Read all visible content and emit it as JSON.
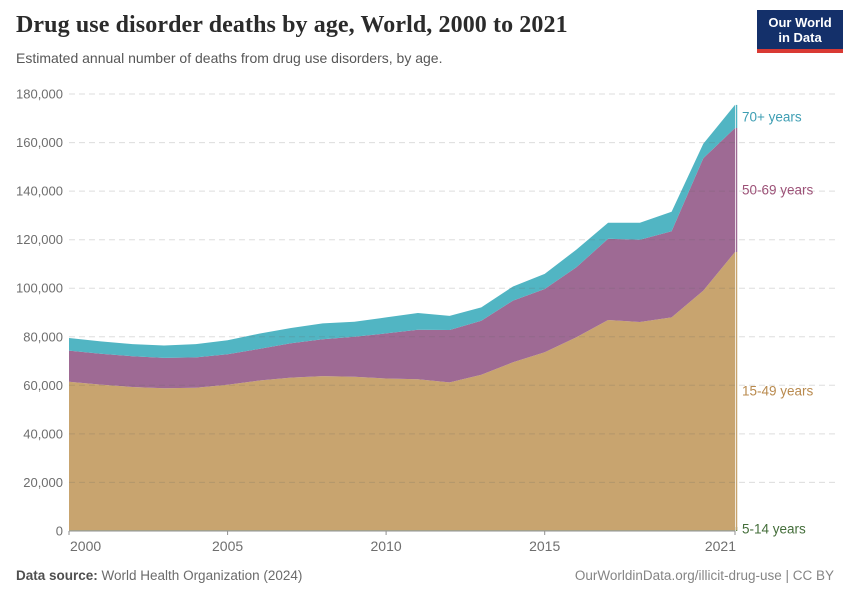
{
  "header": {
    "title": "Drug use disorder deaths by age, World, 2000 to 2021",
    "subtitle": "Estimated annual number of deaths from drug use disorders, by age.",
    "logo": {
      "line1": "Our World",
      "line2": "in Data",
      "bg": "#14306a",
      "accent": "#d93a34"
    }
  },
  "footer": {
    "source_label": "Data source:",
    "source_value": " World Health Organization (2024)",
    "attribution": "OurWorldinData.org/illicit-drug-use | CC BY"
  },
  "chart_data": {
    "type": "area",
    "stacked": true,
    "grid": "dashed",
    "legend_position": "right-edge-labels",
    "x": [
      2000,
      2001,
      2002,
      2003,
      2004,
      2005,
      2006,
      2007,
      2008,
      2009,
      2010,
      2011,
      2012,
      2013,
      2014,
      2015,
      2016,
      2017,
      2018,
      2019,
      2020,
      2021
    ],
    "series": [
      {
        "name": "5-14 years",
        "color": "#4c7d43",
        "label_color": "#436d39",
        "values": [
          300,
          300,
          300,
          300,
          300,
          300,
          300,
          300,
          300,
          300,
          300,
          300,
          300,
          300,
          300,
          300,
          300,
          300,
          300,
          300,
          300,
          300
        ]
      },
      {
        "name": "15-49 years",
        "color": "#c8a46f",
        "label_color": "#b98a4e",
        "values": [
          61200,
          60000,
          59000,
          58500,
          58700,
          59900,
          61700,
          62900,
          63500,
          63200,
          62500,
          62200,
          60900,
          64100,
          69200,
          73300,
          79500,
          86600,
          85800,
          87700,
          98700,
          114600
        ]
      },
      {
        "name": "50-69 years",
        "color": "#9e6a94",
        "label_color": "#9c5177",
        "values": [
          12800,
          12700,
          12700,
          12500,
          12500,
          12600,
          13000,
          14100,
          15200,
          16500,
          18600,
          20400,
          21600,
          22200,
          25400,
          26100,
          28800,
          33500,
          33900,
          35500,
          54500,
          51100
        ]
      },
      {
        "name": "70+ years",
        "color": "#51b5c3",
        "label_color": "#3e9eb3",
        "values": [
          5200,
          5100,
          5000,
          5100,
          5500,
          5800,
          6300,
          6300,
          6500,
          6200,
          6600,
          6900,
          5800,
          5500,
          5800,
          6200,
          7300,
          6600,
          7000,
          8000,
          6000,
          9500
        ]
      }
    ],
    "ylim": [
      0,
      180000
    ],
    "yticks": [
      {
        "v": 0,
        "label": "0"
      },
      {
        "v": 20000,
        "label": "20,000"
      },
      {
        "v": 40000,
        "label": "40,000"
      },
      {
        "v": 60000,
        "label": "60,000"
      },
      {
        "v": 80000,
        "label": "80,000"
      },
      {
        "v": 100000,
        "label": "100,000"
      },
      {
        "v": 120000,
        "label": "120,000"
      },
      {
        "v": 140000,
        "label": "140,000"
      },
      {
        "v": 160000,
        "label": "160,000"
      },
      {
        "v": 180000,
        "label": "180,000"
      }
    ],
    "xticks": [
      {
        "v": 2000,
        "label": "2000"
      },
      {
        "v": 2005,
        "label": "2005"
      },
      {
        "v": 2010,
        "label": "2010"
      },
      {
        "v": 2015,
        "label": "2015"
      },
      {
        "v": 2021,
        "label": "2021"
      }
    ]
  }
}
